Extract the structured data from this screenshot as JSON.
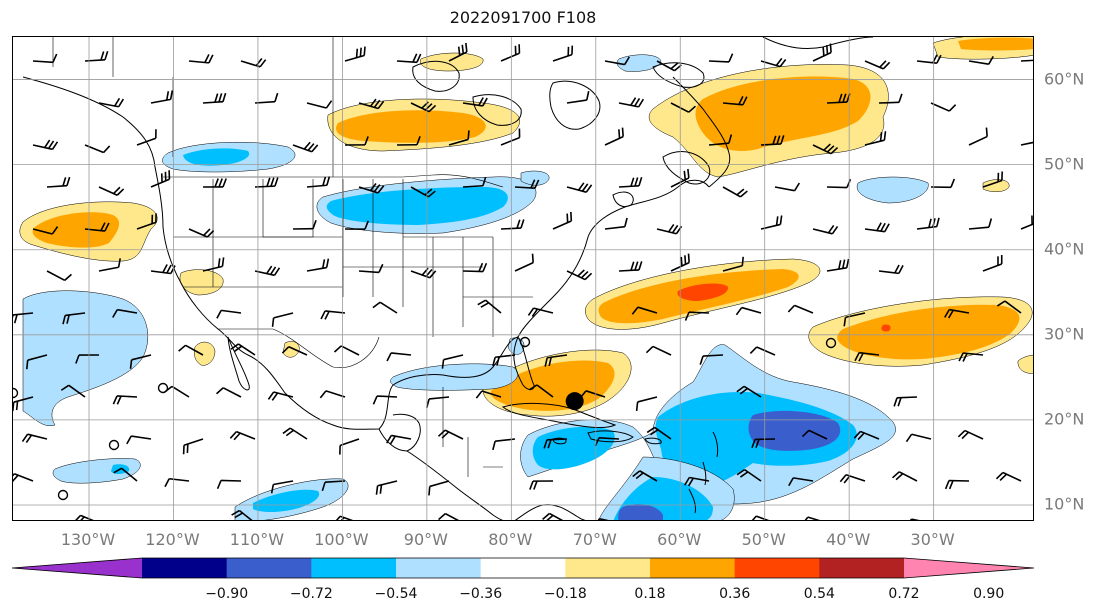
{
  "title": "2022091700 F108",
  "map": {
    "projection": "plate-carree",
    "lon_range": [
      -139,
      -18
    ],
    "lat_range": [
      8,
      65
    ],
    "gridlines": true,
    "lon_ticks": [
      {
        "value": -130,
        "label": "130°W"
      },
      {
        "value": -120,
        "label": "120°W"
      },
      {
        "value": -110,
        "label": "110°W"
      },
      {
        "value": -100,
        "label": "100°W"
      },
      {
        "value": -90,
        "label": "90°W"
      },
      {
        "value": -80,
        "label": "80°W"
      },
      {
        "value": -70,
        "label": "70°W"
      },
      {
        "value": -60,
        "label": "60°W"
      },
      {
        "value": -50,
        "label": "50°W"
      },
      {
        "value": -40,
        "label": "40°W"
      },
      {
        "value": -30,
        "label": "30°W"
      }
    ],
    "lat_ticks": [
      {
        "value": 60,
        "label": "60°N"
      },
      {
        "value": 50,
        "label": "50°N"
      },
      {
        "value": 40,
        "label": "40°N"
      },
      {
        "value": 30,
        "label": "30°N"
      },
      {
        "value": 20,
        "label": "20°N"
      },
      {
        "value": 10,
        "label": "10°N"
      }
    ],
    "storm_marker": {
      "lon": -72.5,
      "lat": 22.2,
      "color": "#000000"
    }
  },
  "colorbar": {
    "extend": "both",
    "colors": [
      "#9932cc",
      "#00008b",
      "#3a5fcd",
      "#00bfff",
      "#b0e0ff",
      "#ffffff",
      "#ffe88c",
      "#ffa500",
      "#ff4500",
      "#b22222",
      "#ff85b0"
    ],
    "ticks": [
      "−0.90",
      "−0.72",
      "−0.54",
      "−0.36",
      "−0.18",
      "0.18",
      "0.36",
      "0.54",
      "0.72",
      "0.90"
    ]
  }
}
